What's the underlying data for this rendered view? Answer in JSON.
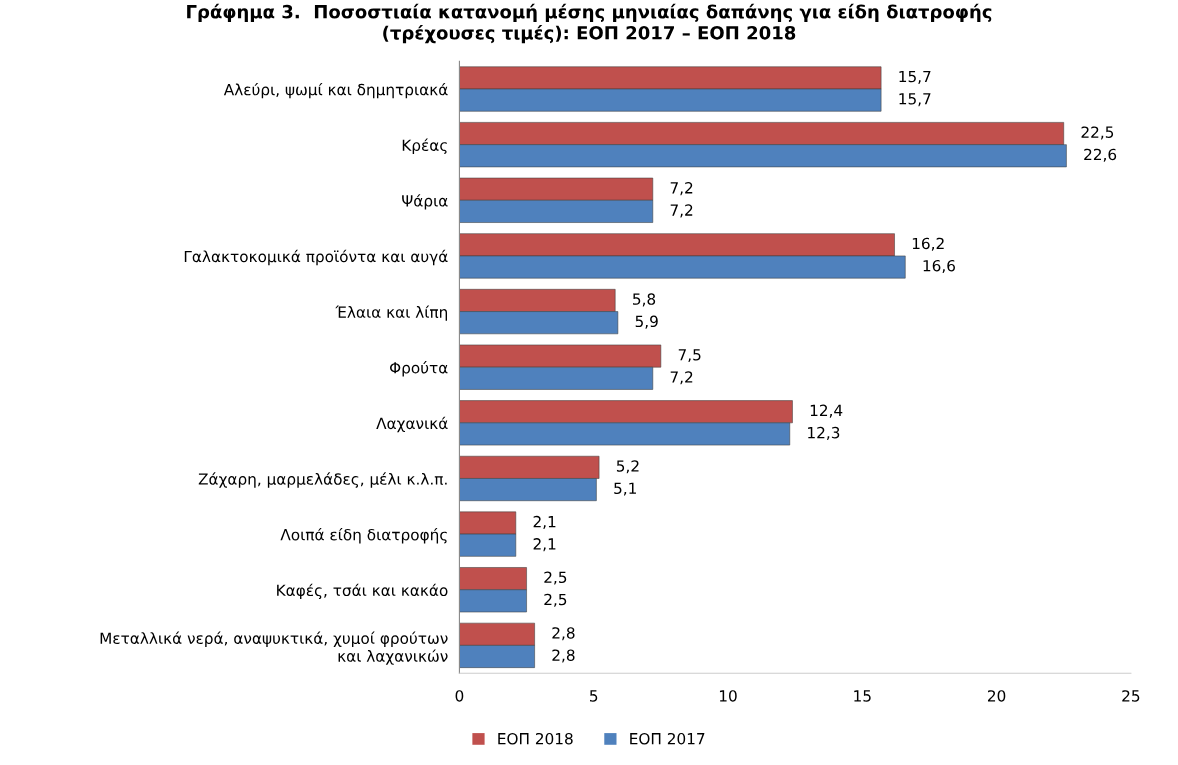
{
  "chart_data": {
    "type": "bar",
    "orientation": "horizontal",
    "title": "Γράφημα 3.  Ποσοστιαία κατανομή μέσης μηνιαίας δαπάνης για είδη διατροφής\n(τρέχουσες τιμές): ΕΟΠ 2017 – ΕΟΠ 2018",
    "categories": [
      "Αλεύρι, ψωμί και δημητριακά",
      "Κρέας",
      "Ψάρια",
      "Γαλακτοκομικά προϊόντα και αυγά",
      "Έλαια και λίπη",
      "Φρούτα",
      "Λαχανικά",
      "Ζάχαρη, μαρμελάδες, μέλι κ.λ.π.",
      "Λοιπά είδη διατροφής",
      "Καφές, τσάι και κακάο",
      "Μεταλλικά νερά, αναψυκτικά, χυμοί φρούτων\nκαι λαχανικών"
    ],
    "series": [
      {
        "name": "ΕΟΠ 2018",
        "color": "#c0504d",
        "values": [
          15.7,
          22.5,
          7.2,
          16.2,
          5.8,
          7.5,
          12.4,
          5.2,
          2.1,
          2.5,
          2.8
        ],
        "value_labels": [
          "15,7",
          "22,5",
          "7,2",
          "16,2",
          "5,8",
          "7,5",
          "12,4",
          "5,2",
          "2,1",
          "2,5",
          "2,8"
        ]
      },
      {
        "name": "ΕΟΠ 2017",
        "color": "#4f81bd",
        "values": [
          15.7,
          22.6,
          7.2,
          16.6,
          5.9,
          7.2,
          12.3,
          5.1,
          2.1,
          2.5,
          2.8
        ],
        "value_labels": [
          "15,7",
          "22,6",
          "7,2",
          "16,6",
          "5,9",
          "7,2",
          "12,3",
          "5,1",
          "2,1",
          "2,5",
          "2,8"
        ]
      }
    ],
    "xlim": [
      0,
      25
    ],
    "xticks": [
      0,
      5,
      10,
      15,
      20,
      25
    ],
    "grid": false,
    "legend": "bottom"
  }
}
